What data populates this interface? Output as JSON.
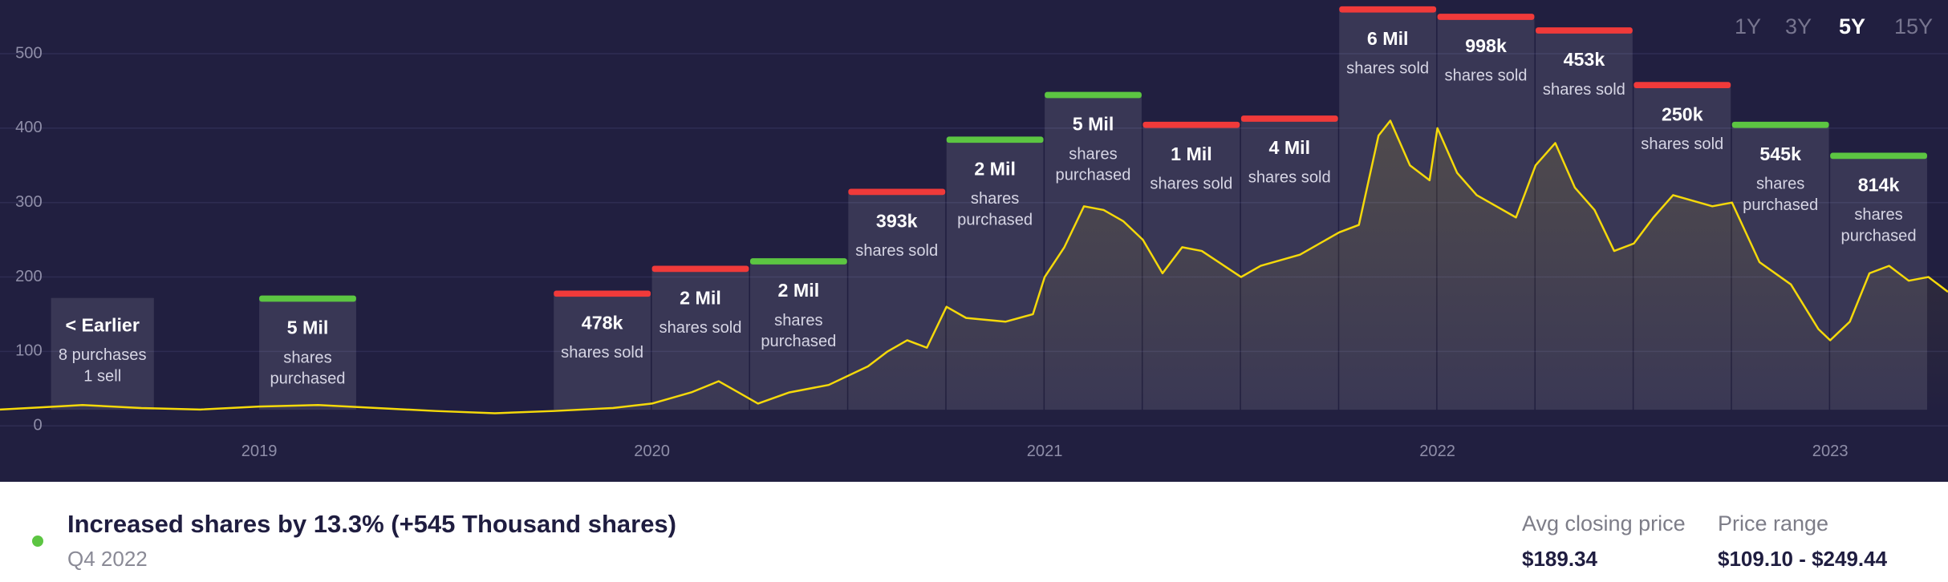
{
  "chart_data": {
    "type": "line",
    "color": "#f5d90a",
    "x": [
      2018.34,
      2018.45,
      2018.55,
      2018.7,
      2018.85,
      2019.0,
      2019.15,
      2019.3,
      2019.45,
      2019.6,
      2019.75,
      2019.9,
      2020.0,
      2020.1,
      2020.17,
      2020.22,
      2020.27,
      2020.35,
      2020.45,
      2020.55,
      2020.6,
      2020.65,
      2020.7,
      2020.75,
      2020.8,
      2020.9,
      2020.97,
      2021.0,
      2021.05,
      2021.1,
      2021.15,
      2021.2,
      2021.25,
      2021.3,
      2021.35,
      2021.4,
      2021.5,
      2021.55,
      2021.65,
      2021.75,
      2021.8,
      2021.85,
      2021.88,
      2021.93,
      2021.98,
      2022.0,
      2022.05,
      2022.1,
      2022.2,
      2022.25,
      2022.3,
      2022.35,
      2022.4,
      2022.45,
      2022.5,
      2022.55,
      2022.6,
      2022.7,
      2022.75,
      2022.82,
      2022.9,
      2022.97,
      2023.0,
      2023.05,
      2023.1,
      2023.15,
      2023.2,
      2023.25,
      2023.3
    ],
    "values": [
      22,
      25,
      28,
      24,
      22,
      26,
      28,
      24,
      20,
      17,
      20,
      24,
      30,
      45,
      60,
      45,
      30,
      45,
      55,
      80,
      100,
      115,
      105,
      160,
      145,
      140,
      150,
      200,
      240,
      295,
      290,
      275,
      250,
      205,
      240,
      235,
      200,
      215,
      230,
      260,
      270,
      390,
      410,
      350,
      330,
      400,
      340,
      310,
      280,
      350,
      380,
      320,
      290,
      235,
      245,
      280,
      310,
      295,
      300,
      220,
      190,
      130,
      115,
      140,
      205,
      215,
      195,
      200,
      180
    ],
    "xlim": [
      2018.34,
      2023.3
    ],
    "ylim": [
      -75,
      572
    ],
    "xticks": [
      2019,
      2020,
      2021,
      2022,
      2023
    ],
    "yticks": [
      0,
      100,
      200,
      300,
      400,
      500
    ],
    "grid": true,
    "earlier": {
      "label": "< Earlier",
      "lines": [
        "8 purchases",
        "1 sell"
      ],
      "range": [
        2018.47,
        2018.735
      ]
    },
    "trades": [
      {
        "label": "5 Mil",
        "note": "shares purchased",
        "color": "#5cc542",
        "range": [
          2019.0,
          2019.25
        ]
      },
      {
        "label": "478k",
        "note": "shares sold",
        "color": "#f03a3a",
        "range": [
          2019.75,
          2020.0
        ]
      },
      {
        "label": "2 Mil",
        "note": "shares sold",
        "color": "#f03a3a",
        "range": [
          2020.0,
          2020.25
        ]
      },
      {
        "label": "2 Mil",
        "note": "shares purchased",
        "color": "#5cc542",
        "range": [
          2020.25,
          2020.5
        ]
      },
      {
        "label": "393k",
        "note": "shares sold",
        "color": "#f03a3a",
        "range": [
          2020.5,
          2020.75
        ]
      },
      {
        "label": "2 Mil",
        "note": "shares purchased",
        "color": "#5cc542",
        "range": [
          2020.75,
          2021.0
        ]
      },
      {
        "label": "5 Mil",
        "note": "shares purchased",
        "color": "#5cc542",
        "range": [
          2021.0,
          2021.25
        ]
      },
      {
        "label": "1 Mil",
        "note": "shares sold",
        "color": "#f03a3a",
        "range": [
          2021.25,
          2021.5
        ]
      },
      {
        "label": "4 Mil",
        "note": "shares sold",
        "color": "#f03a3a",
        "range": [
          2021.5,
          2021.75
        ]
      },
      {
        "label": "6 Mil",
        "note": "shares sold",
        "color": "#f03a3a",
        "range": [
          2021.75,
          2022.0
        ]
      },
      {
        "label": "998k",
        "note": "shares sold",
        "color": "#f03a3a",
        "range": [
          2022.0,
          2022.25
        ]
      },
      {
        "label": "453k",
        "note": "shares sold",
        "color": "#f03a3a",
        "range": [
          2022.25,
          2022.5
        ]
      },
      {
        "label": "250k",
        "note": "shares sold",
        "color": "#f03a3a",
        "range": [
          2022.5,
          2022.75
        ]
      },
      {
        "label": "545k",
        "note": "shares purchased",
        "color": "#5cc542",
        "range": [
          2022.75,
          2023.0
        ]
      },
      {
        "label": "814k",
        "note": "shares purchased",
        "color": "#5cc542",
        "range": [
          2023.0,
          2023.25
        ]
      }
    ]
  },
  "ranges": {
    "options": [
      "1Y",
      "3Y",
      "5Y",
      "15Y"
    ],
    "active": "5Y"
  },
  "summary": {
    "title": "Increased shares by 13.3% (+545 Thousand shares)",
    "period": "Q4 2022",
    "stats": [
      {
        "label": "Avg closing price",
        "value": "$189.34"
      },
      {
        "label": "Price range",
        "value": "$109.10 - $249.44"
      }
    ]
  }
}
